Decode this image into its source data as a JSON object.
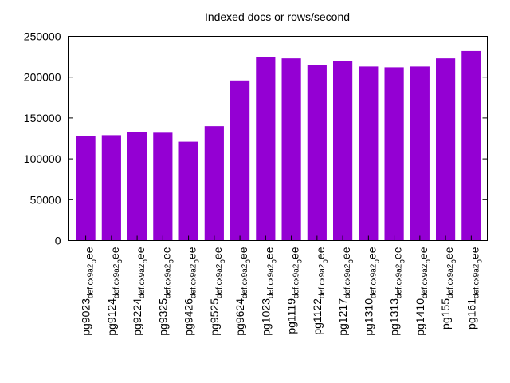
{
  "chart_data": {
    "type": "bar",
    "title": "Indexed docs or rows/second",
    "xlabel": "",
    "ylabel": "",
    "ylim": [
      0,
      250000
    ],
    "yticks": [
      0,
      50000,
      100000,
      150000,
      200000,
      250000
    ],
    "grid": false,
    "legend": "none",
    "bar_color": "#9400d3",
    "categories": [
      {
        "main": "pg9023",
        "sub": "def.cx9a2",
        "suffix": "b",
        "tail": "ee"
      },
      {
        "main": "pg9124",
        "sub": "def.cx9a2",
        "suffix": "b",
        "tail": "ee"
      },
      {
        "main": "pg9224",
        "sub": "def.cx9a2",
        "suffix": "b",
        "tail": "ee"
      },
      {
        "main": "pg9325",
        "sub": "def.cx9a2",
        "suffix": "b",
        "tail": "ee"
      },
      {
        "main": "pg9426",
        "sub": "def.cx9a2",
        "suffix": "b",
        "tail": "ee"
      },
      {
        "main": "pg9525",
        "sub": "def.cx9a2",
        "suffix": "b",
        "tail": "ee"
      },
      {
        "main": "pg9624",
        "sub": "def.cx9a2",
        "suffix": "b",
        "tail": "ee"
      },
      {
        "main": "pg1023",
        "sub": "def.cx9a2",
        "suffix": "b",
        "tail": "ee"
      },
      {
        "main": "pg1119",
        "sub": "def.cx9a2",
        "suffix": "b",
        "tail": "ee"
      },
      {
        "main": "pg1122",
        "sub": "def.cx9a2",
        "suffix": "b",
        "tail": "ee"
      },
      {
        "main": "pg1217",
        "sub": "def.cx9a2",
        "suffix": "b",
        "tail": "ee"
      },
      {
        "main": "pg1310",
        "sub": "def.cx9a2",
        "suffix": "b",
        "tail": "ee"
      },
      {
        "main": "pg1313",
        "sub": "def.cx9a2",
        "suffix": "b",
        "tail": "ee"
      },
      {
        "main": "pg1410",
        "sub": "def.cx9a2",
        "suffix": "b",
        "tail": "ee"
      },
      {
        "main": "pg155",
        "sub": "def.cx9a2",
        "suffix": "b",
        "tail": "ee"
      },
      {
        "main": "pg161",
        "sub": "def.cx9a2",
        "suffix": "b",
        "tail": "ee"
      }
    ],
    "values": [
      128000,
      129000,
      133000,
      132000,
      121000,
      140000,
      196000,
      225000,
      223000,
      215000,
      220000,
      213000,
      212000,
      213000,
      223000,
      232000
    ]
  }
}
